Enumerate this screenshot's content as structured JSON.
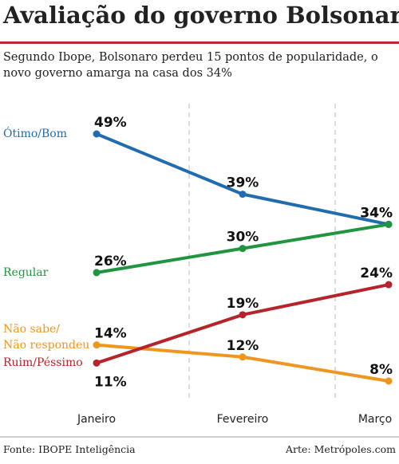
{
  "chart_data": {
    "type": "line",
    "title": "Avaliação do governo Bolsonaro",
    "subtitle": "Segundo Ibope, Bolsonaro perdeu 15 pontos de popularidade, o novo governo amarga na casa dos 34%",
    "categories": [
      "Janeiro",
      "Fevereiro",
      "Março"
    ],
    "series": [
      {
        "name": "Ótimo/Bom",
        "color": "#1f6db0",
        "values": [
          49,
          39,
          34
        ],
        "value_labels": [
          "49%",
          "39%",
          "34%"
        ]
      },
      {
        "name": "Regular",
        "color": "#1f9540",
        "values": [
          26,
          30,
          34
        ],
        "value_labels": [
          "26%",
          "30%",
          "34%"
        ]
      },
      {
        "name": "Não sabe/\nNão respondeu",
        "color": "#f0961e",
        "values": [
          14,
          12,
          8
        ],
        "value_labels": [
          "14%",
          "12%",
          "8%"
        ]
      },
      {
        "name": "Ruim/Péssimo",
        "color": "#b5242b",
        "values": [
          11,
          19,
          24
        ],
        "value_labels": [
          "11%",
          "19%",
          "24%"
        ]
      }
    ],
    "source": "Fonte: IBOPE Inteligência",
    "credit": "Arte: Metrópoles.com"
  }
}
